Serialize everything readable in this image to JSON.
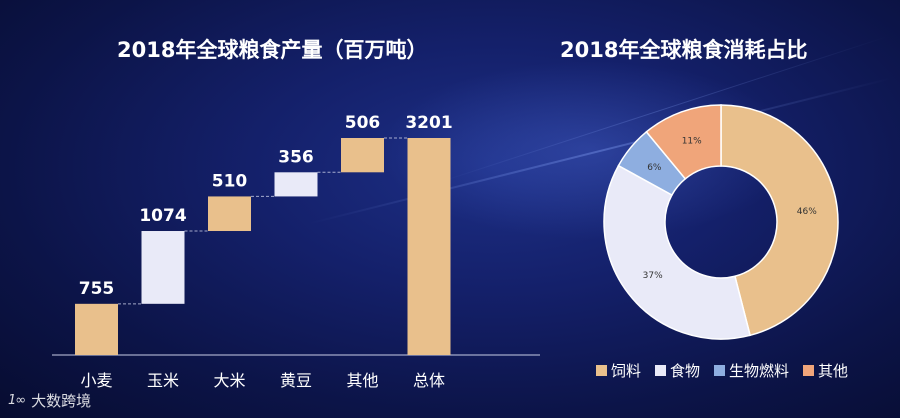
{
  "chart_data": [
    {
      "type": "bar",
      "subtype": "waterfall",
      "title": "2018年全球粮食产量（百万吨）",
      "categories": [
        "小麦",
        "玉米",
        "大米",
        "黄豆",
        "其他",
        "总体"
      ],
      "values": [
        755,
        1074,
        510,
        356,
        506,
        3201
      ],
      "data_labels": [
        "755",
        "1074",
        "510",
        "356",
        "506",
        "3201"
      ],
      "colors": [
        "#e9c08c",
        "#e9eaf8",
        "#e9c08c",
        "#e9eaf8",
        "#e9c08c",
        "#e9c08c"
      ],
      "ylim": [
        0,
        3201
      ],
      "grid": false
    },
    {
      "type": "pie",
      "subtype": "donut",
      "title": "2018年全球粮食消耗占比",
      "labels": [
        "饲料",
        "食物",
        "生物燃料",
        "其他"
      ],
      "values": [
        46,
        37,
        6,
        11
      ],
      "data_labels": [
        "46%",
        "37%",
        "6%",
        "11%"
      ],
      "colors": [
        "#e9c08c",
        "#e9eaf8",
        "#8eaee0",
        "#f0a57a"
      ],
      "legend": "bottom"
    }
  ],
  "watermark": {
    "logo": "1∞",
    "text": "大数跨境"
  }
}
